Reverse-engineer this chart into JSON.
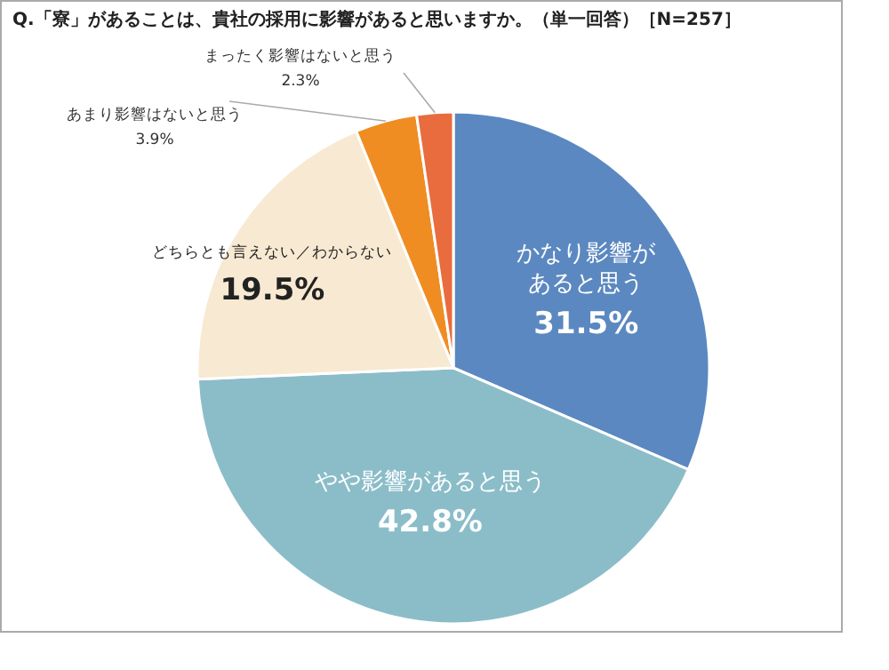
{
  "chart_data": {
    "type": "pie",
    "title": "Q.「寮」があることは、貴社の採用に影響があると思いますか。（単一回答）［N=257］",
    "categories": [
      "かなり影響があると思う",
      "やや影響があると思う",
      "どちらとも言えない／わからない",
      "あまり影響はないと思う",
      "まったく影響はないと思う"
    ],
    "values": [
      31.5,
      42.8,
      19.5,
      3.9,
      2.3
    ],
    "value_labels": [
      "31.5%",
      "42.8%",
      "19.5%",
      "3.9%",
      "2.3%"
    ],
    "colors": [
      "#5b88c0",
      "#8bbdc9",
      "#f8e9d2",
      "#ef8d22",
      "#e86c3e"
    ]
  }
}
